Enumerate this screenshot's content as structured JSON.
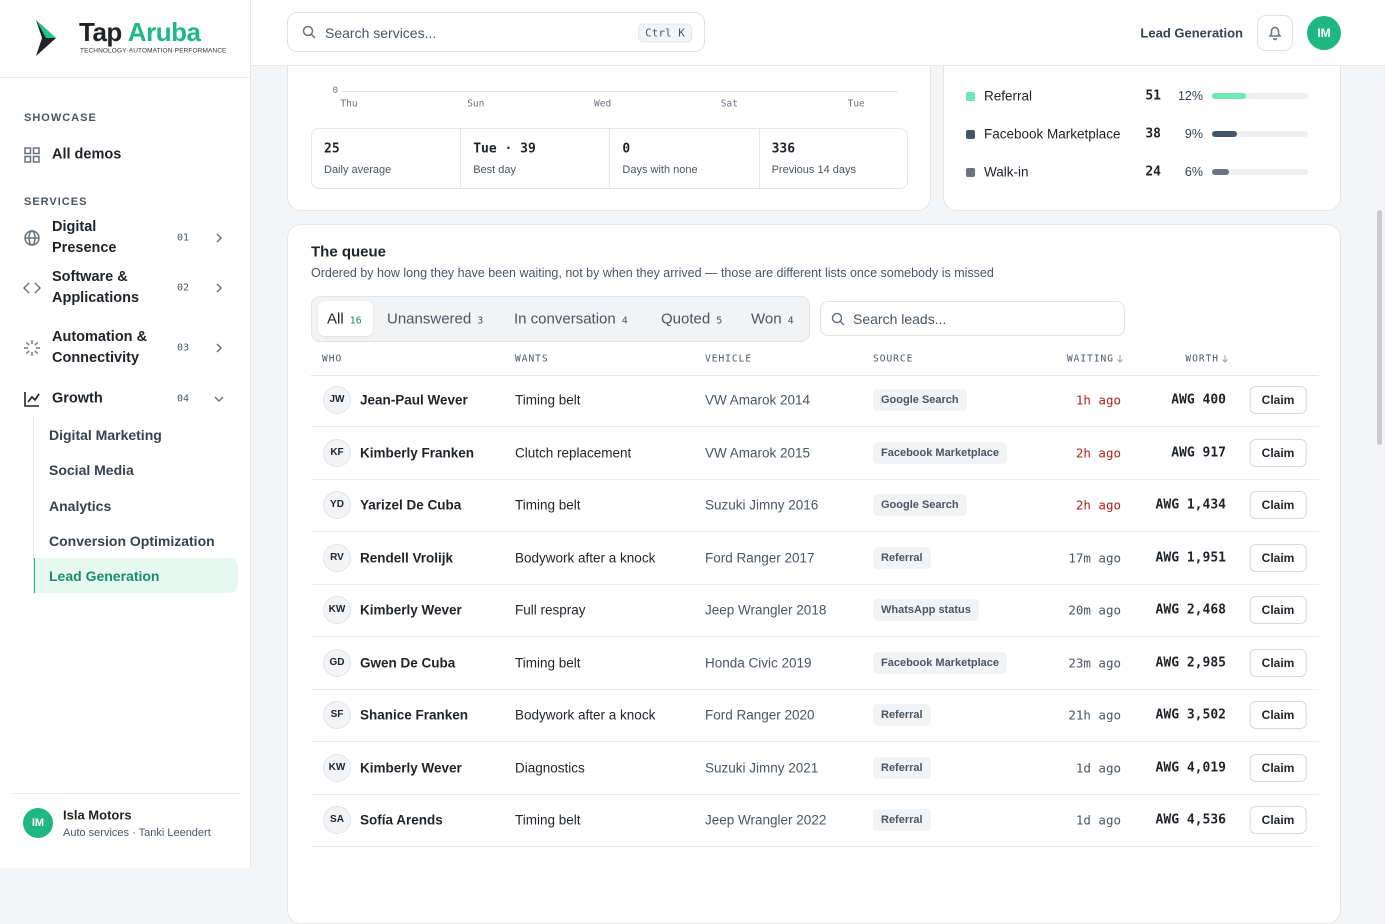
{
  "brand": {
    "name": "Tap",
    "accent": "Aruba",
    "tagline": "TECHNOLOGY·AUTOMATION·PERFORMANCE"
  },
  "sidebar": {
    "sections": [
      {
        "label": "SHOWCASE",
        "items": [
          {
            "label": "All demos"
          }
        ]
      },
      {
        "label": "SERVICES",
        "items": [
          {
            "label": "Digital Presence",
            "number": "01"
          },
          {
            "label": "Software & Applications",
            "number": "02"
          },
          {
            "label": "Automation & Connectivity",
            "number": "03"
          },
          {
            "label": "Growth",
            "number": "04",
            "children": [
              "Digital Marketing",
              "Social Media",
              "Analytics",
              "Conversion Optimization",
              "Lead Generation"
            ]
          }
        ]
      }
    ],
    "active_child": 4
  },
  "account": {
    "initials": "IM",
    "name": "Isla Motors",
    "detail": "Auto services · Tanki Leendert"
  },
  "topbar": {
    "search_placeholder": "Search services...",
    "shortcut": "Ctrl K",
    "page": "Lead Generation",
    "avatar": "IM"
  },
  "trend": {
    "y_tick": 0,
    "x_labels": [
      "Thu",
      "Sun",
      "Wed",
      "Sat",
      "Tue"
    ],
    "stats": [
      {
        "value": 25,
        "label": "Daily average"
      },
      {
        "value": "Tue · 39",
        "label": "Best day"
      },
      {
        "value": 0,
        "label": "Days with none"
      },
      {
        "value": 336,
        "label": "Previous 14 days"
      }
    ]
  },
  "sources": [
    {
      "name": "Referral",
      "count": 51,
      "share": "12%",
      "color": "#6ee7b7"
    },
    {
      "name": "Facebook Marketplace",
      "count": 38,
      "share": "9%",
      "color": "#475569"
    },
    {
      "name": "Walk-in",
      "count": 24,
      "share": "6%",
      "color": "#6b7280"
    }
  ],
  "queue": {
    "title": "The queue",
    "subtitle": "Ordered by how long they have been waiting, not by when they arrived — those are different lists once somebody is missed",
    "tabs": [
      {
        "label": "All",
        "count": 16
      },
      {
        "label": "Unanswered",
        "count": 3
      },
      {
        "label": "In conversation",
        "count": 4
      },
      {
        "label": "Quoted",
        "count": 5
      },
      {
        "label": "Won",
        "count": 4
      }
    ],
    "active_tab": 0,
    "search_placeholder": "Search leads...",
    "columns": [
      "WHO",
      "WANTS",
      "VEHICLE",
      "SOURCE",
      "WAITING",
      "WORTH"
    ],
    "rows": [
      {
        "initials": "JW",
        "name": "Jean-Paul Wever",
        "wants": "Timing belt",
        "vehicle": "VW Amarok 2014",
        "source": "Google Search",
        "waiting": "1h ago",
        "urgent": true,
        "worth": "AWG 400",
        "action": "Claim"
      },
      {
        "initials": "KF",
        "name": "Kimberly Franken",
        "wants": "Clutch replacement",
        "vehicle": "VW Amarok 2015",
        "source": "Facebook Marketplace",
        "waiting": "2h ago",
        "urgent": true,
        "worth": "AWG 917",
        "action": "Claim"
      },
      {
        "initials": "YD",
        "name": "Yarizel De Cuba",
        "wants": "Timing belt",
        "vehicle": "Suzuki Jimny 2016",
        "source": "Google Search",
        "waiting": "2h ago",
        "urgent": true,
        "worth": "AWG 1,434",
        "action": "Claim"
      },
      {
        "initials": "RV",
        "name": "Rendell Vrolijk",
        "wants": "Bodywork after a knock",
        "vehicle": "Ford Ranger 2017",
        "source": "Referral",
        "waiting": "17m ago",
        "urgent": false,
        "worth": "AWG 1,951",
        "action": "Claim"
      },
      {
        "initials": "KW",
        "name": "Kimberly Wever",
        "wants": "Full respray",
        "vehicle": "Jeep Wrangler 2018",
        "source": "WhatsApp status",
        "waiting": "20m ago",
        "urgent": false,
        "worth": "AWG 2,468",
        "action": "Claim"
      },
      {
        "initials": "GD",
        "name": "Gwen De Cuba",
        "wants": "Timing belt",
        "vehicle": "Honda Civic 2019",
        "source": "Facebook Marketplace",
        "waiting": "23m ago",
        "urgent": false,
        "worth": "AWG 2,985",
        "action": "Claim"
      },
      {
        "initials": "SF",
        "name": "Shanice Franken",
        "wants": "Bodywork after a knock",
        "vehicle": "Ford Ranger 2020",
        "source": "Referral",
        "waiting": "21h ago",
        "urgent": false,
        "worth": "AWG 3,502",
        "action": "Claim"
      },
      {
        "initials": "KW",
        "name": "Kimberly Wever",
        "wants": "Diagnostics",
        "vehicle": "Suzuki Jimny 2021",
        "source": "Referral",
        "waiting": "1d ago",
        "urgent": false,
        "worth": "AWG 4,019",
        "action": "Claim"
      },
      {
        "initials": "SA",
        "name": "Sofía Arends",
        "wants": "Timing belt",
        "vehicle": "Jeep Wrangler 2022",
        "source": "Referral",
        "waiting": "1d ago",
        "urgent": false,
        "worth": "AWG 4,536",
        "action": "Claim"
      }
    ]
  }
}
